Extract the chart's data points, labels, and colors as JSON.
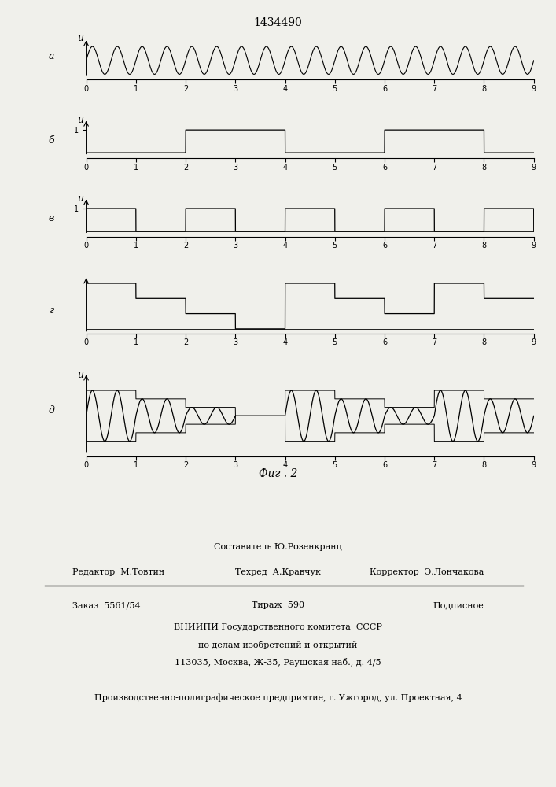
{
  "title": "1434490",
  "fig_caption": "Фиг . 2",
  "subplot_labels": [
    "а",
    "б",
    "в",
    "г",
    "д"
  ],
  "ylabel_u": "u",
  "xmax": 9,
  "sine_freq": 2.0,
  "staircase_g_steps": [
    3,
    2,
    1,
    0,
    3,
    2,
    1,
    3,
    2,
    0
  ],
  "square_b_high_ranges": [
    [
      2,
      4
    ],
    [
      6,
      8
    ]
  ],
  "square_v_period": 2,
  "square_v_high_duration": 1,
  "footer_lines": [
    "Составитель Ю.Розенкранц",
    "Редактор  М.Товтин",
    "Техред  А.Кравчук",
    "Корректор  Э.Лончакова",
    "Заказ  5561/54",
    "Тираж  590",
    "Подписное",
    "ВНИИПИ Государственного комитета  СССР",
    "по делам изобретений и открытий",
    "113035, Москва, Ж-35, Раушская наб., д. 4/5",
    "Производственно-полиграфическое предприятие, г. Ужгород, ул. Проектная, 4"
  ],
  "background_color": "#f0f0eb"
}
